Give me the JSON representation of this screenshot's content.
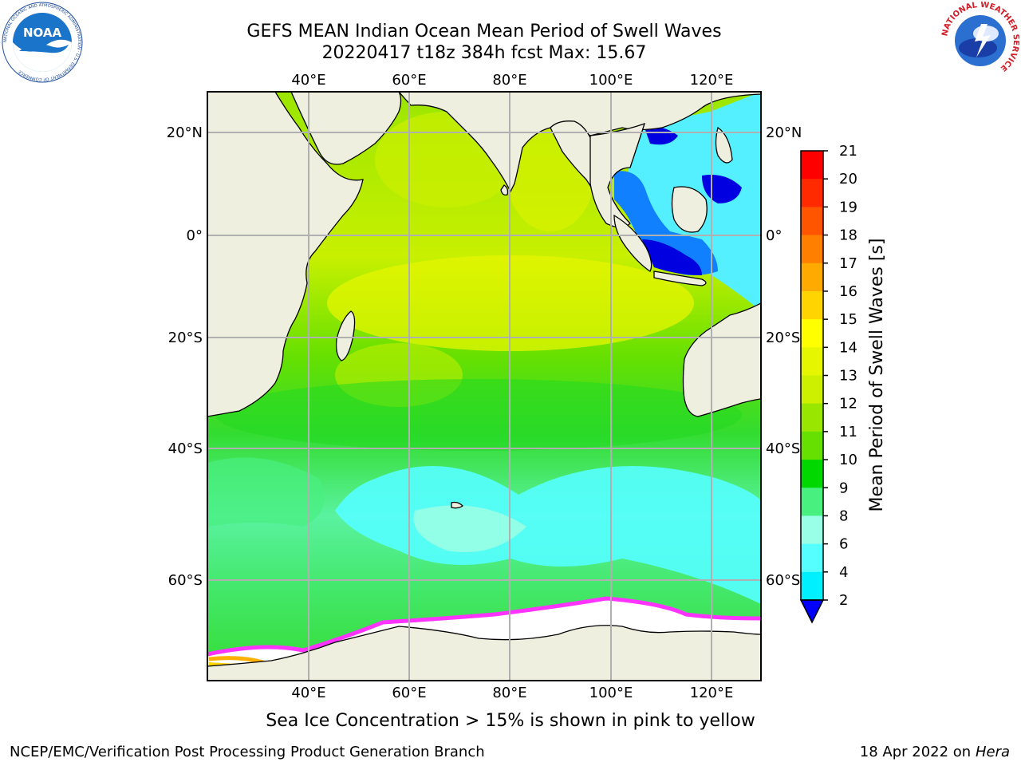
{
  "title": {
    "line1": "GEFS MEAN Indian Ocean Mean Period of Swell Waves",
    "line2": "20220417 t18z 384h fcst   Max: 15.67"
  },
  "map": {
    "lon_ticks": [
      "40°E",
      "60°E",
      "80°E",
      "100°E",
      "120°E"
    ],
    "lat_ticks": [
      "20°N",
      "0°",
      "20°S",
      "40°S",
      "60°S"
    ],
    "lon_range": [
      20,
      130
    ],
    "lat_range": [
      -74,
      28
    ],
    "colors": {
      "land": "#efefdf",
      "grid": "#b0b0b0",
      "ice": "#ffffff",
      "ice_edge": "#ff33ff"
    }
  },
  "colorbar": {
    "label": "Mean Period of Swell Waves [s]",
    "ticks": [
      "21",
      "20",
      "19",
      "18",
      "17",
      "16",
      "15",
      "14",
      "13",
      "12",
      "11",
      "10",
      "9",
      "8",
      "6",
      "4",
      "2"
    ],
    "colors": [
      "#ff0000",
      "#ff2a00",
      "#ff5500",
      "#ff7f00",
      "#ffaa00",
      "#ffd400",
      "#ffff00",
      "#e6f500",
      "#ccf000",
      "#99e600",
      "#66e000",
      "#00d800",
      "#48f080",
      "#99ffe6",
      "#55ffff",
      "#00f0ff",
      "#0090ff",
      "#0000ff"
    ]
  },
  "caption": "Sea Ice Concentration > 15% is shown in pink to yellow",
  "footer": {
    "credit": "NCEP/EMC/Verification Post Processing Product Generation Branch",
    "date": "18 Apr 2022 on ",
    "machine": "Hera"
  },
  "logos": {
    "noaa": "NOAA",
    "noaa_ring": "NATIONAL OCEANIC AND ATMOSPHERIC ADMINISTRATION · U.S. DEPARTMENT OF COMMERCE",
    "nws_ring": "NATIONAL WEATHER SERVICE"
  }
}
